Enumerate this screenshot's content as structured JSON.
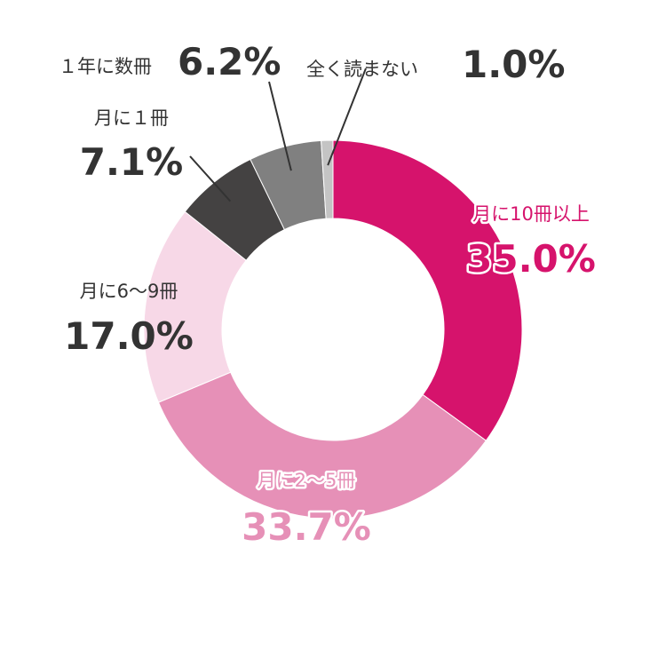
{
  "chart_data": {
    "type": "pie",
    "donut": true,
    "title": "",
    "legend": "none",
    "slices": [
      {
        "label": "月に10冊以上",
        "value": 35.0,
        "value_label": "35.0%",
        "color": "#d6136c"
      },
      {
        "label": "月に2～5冊",
        "value": 33.7,
        "value_label": "33.7%",
        "color": "#e690b7"
      },
      {
        "label": "月に6～9冊",
        "value": 17.0,
        "value_label": "17.0%",
        "color": "#f7d8e7"
      },
      {
        "label": "月に１冊",
        "value": 7.1,
        "value_label": "7.1%",
        "color": "#444242"
      },
      {
        "label": "１年に数冊",
        "value": 6.2,
        "value_label": "6.2%",
        "color": "#808080"
      },
      {
        "label": "全く読まない",
        "value": 1.0,
        "value_label": "1.0%",
        "color": "#c4c4c4"
      }
    ],
    "label_colors": {
      "highlight": "#d6136c",
      "mid": "#e690b7",
      "dark": "#333333"
    }
  }
}
